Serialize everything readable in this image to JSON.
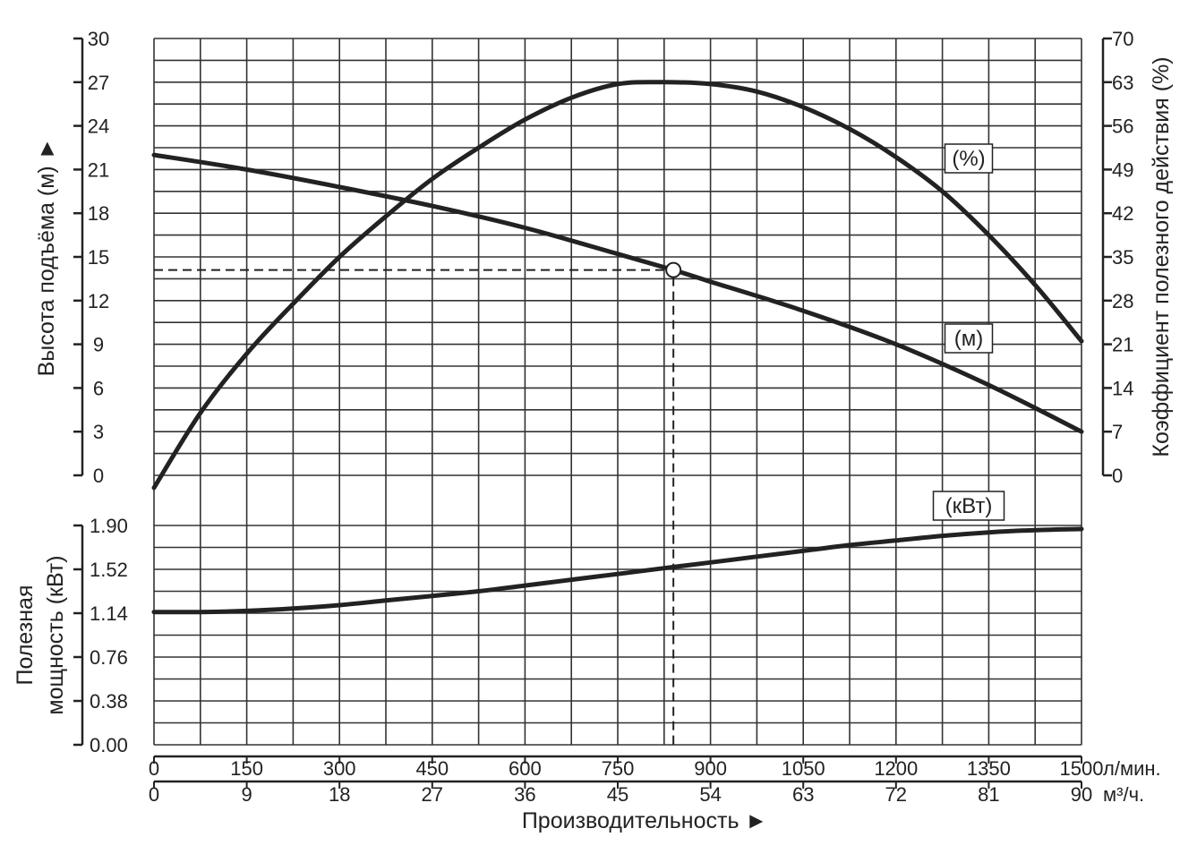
{
  "chart_data": {
    "type": "line",
    "x_axis": {
      "primary_label": "л/мин.",
      "secondary_label": "м³/ч.",
      "title": "Производительность ►",
      "ticks_lmin": [
        0,
        150,
        300,
        450,
        600,
        750,
        900,
        1050,
        1200,
        1350,
        1500
      ],
      "ticks_m3h": [
        0,
        9,
        18,
        27,
        36,
        45,
        54,
        63,
        72,
        81,
        90
      ],
      "range": [
        0,
        1500
      ]
    },
    "left_top_axis": {
      "title": "Высота подъёма (м) ►",
      "range": [
        0,
        30
      ],
      "ticks": [
        0,
        3,
        6,
        9,
        12,
        15,
        18,
        21,
        24,
        27,
        30
      ]
    },
    "right_axis": {
      "title": "Коэффициент полезного действия (%)",
      "range": [
        0,
        70
      ],
      "ticks": [
        0,
        7,
        14,
        21,
        28,
        35,
        42,
        49,
        56,
        63,
        70
      ]
    },
    "bottom_axis": {
      "title_line1": "Полезная",
      "title_line2": "мощность (кВт)",
      "range": [
        0,
        1.9
      ],
      "ticks": [
        "0.00",
        "0.38",
        "0.76",
        "1.14",
        "1.52",
        "1.90"
      ]
    },
    "series": [
      {
        "name": "(%)",
        "axis": "right",
        "x": [
          0,
          75,
          150,
          225,
          300,
          375,
          450,
          525,
          600,
          675,
          750,
          825,
          900,
          975,
          1050,
          1125,
          1200,
          1275,
          1350,
          1425,
          1500
        ],
        "y": [
          -2,
          10,
          19.5,
          27.5,
          35,
          41.5,
          47.5,
          52.5,
          57,
          60.5,
          62.7,
          63,
          62.7,
          61.5,
          59,
          55.5,
          51,
          45.5,
          38.5,
          30.5,
          21.5
        ]
      },
      {
        "name": "(м)",
        "axis": "left",
        "x": [
          0,
          150,
          300,
          450,
          600,
          750,
          840,
          900,
          1050,
          1200,
          1350,
          1500
        ],
        "y": [
          22,
          21,
          19.8,
          18.5,
          17,
          15.2,
          14.1,
          13.3,
          11.3,
          9,
          6.2,
          3
        ]
      },
      {
        "name": "(кВт)",
        "axis": "bottom",
        "x": [
          0,
          75,
          150,
          225,
          300,
          375,
          450,
          525,
          600,
          675,
          750,
          825,
          900,
          975,
          1050,
          1125,
          1200,
          1275,
          1350,
          1425,
          1500
        ],
        "y": [
          1.15,
          1.15,
          1.16,
          1.18,
          1.21,
          1.25,
          1.29,
          1.33,
          1.38,
          1.43,
          1.48,
          1.53,
          1.58,
          1.63,
          1.68,
          1.73,
          1.77,
          1.81,
          1.84,
          1.86,
          1.87
        ]
      }
    ],
    "operating_point": {
      "x": 840,
      "y": 14.1
    },
    "grid": true
  }
}
